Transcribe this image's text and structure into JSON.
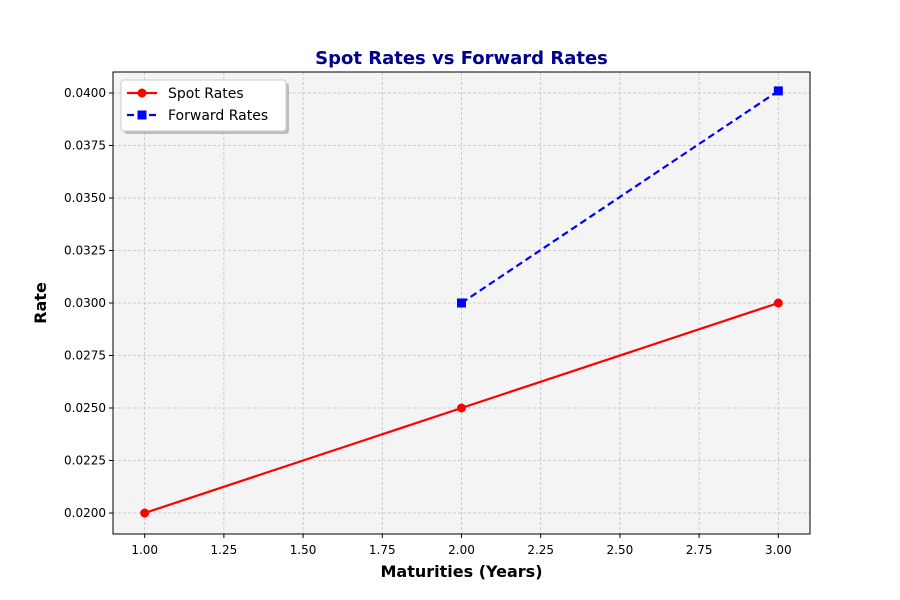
{
  "chart_data": {
    "type": "line",
    "title": "Spot Rates vs Forward Rates",
    "xlabel": "Maturities (Years)",
    "ylabel": "Rate",
    "xlim": [
      0.9,
      3.1
    ],
    "ylim": [
      0.019,
      0.041
    ],
    "x_ticks": [
      "1.00",
      "1.25",
      "1.50",
      "1.75",
      "2.00",
      "2.25",
      "2.50",
      "2.75",
      "3.00"
    ],
    "y_ticks": [
      "0.0200",
      "0.0225",
      "0.0250",
      "0.0275",
      "0.0300",
      "0.0325",
      "0.0350",
      "0.0375",
      "0.0400"
    ],
    "grid": true,
    "legend_position": "top-left",
    "series": [
      {
        "name": "Spot Rates",
        "x": [
          1,
          2,
          3
        ],
        "values": [
          0.02,
          0.025,
          0.03
        ],
        "color": "#ff0000",
        "line_style": "solid",
        "marker": "circle"
      },
      {
        "name": "Forward Rates",
        "x": [
          2,
          3
        ],
        "values": [
          0.03,
          0.0401
        ],
        "color": "#0000ff",
        "line_style": "dashed",
        "marker": "square"
      }
    ],
    "colors": {
      "title": "#00008b",
      "plot_background": "#f4f4f4",
      "grid": "#c0c0c0"
    }
  }
}
